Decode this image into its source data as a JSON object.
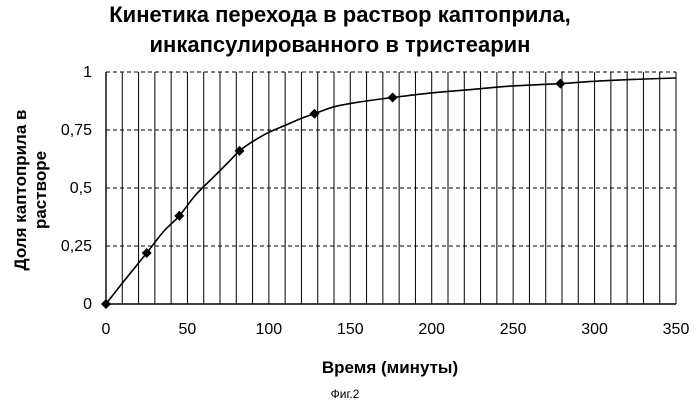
{
  "chart_data": {
    "type": "line",
    "title_lines": [
      "Кинетика перехода в раствор каптоприла,",
      "инкапсулированного в тристеарин"
    ],
    "xlabel": "Время (минуты)",
    "ylabel_lines": [
      "Доля каптоприла в",
      "растворе"
    ],
    "xlim": [
      0,
      350
    ],
    "ylim": [
      0,
      1
    ],
    "x_ticks": [
      0,
      50,
      100,
      150,
      200,
      250,
      300,
      350
    ],
    "y_ticks": [
      {
        "value": 0,
        "label": "0"
      },
      {
        "value": 0.25,
        "label": "0,25"
      },
      {
        "value": 0.5,
        "label": "0,5"
      },
      {
        "value": 0.75,
        "label": "0,75"
      },
      {
        "value": 1,
        "label": "1"
      }
    ],
    "vertical_grid_step": 10,
    "markers": [
      {
        "x": 0,
        "y": 0
      },
      {
        "x": 25,
        "y": 0.22
      },
      {
        "x": 45,
        "y": 0.38
      },
      {
        "x": 82,
        "y": 0.66
      },
      {
        "x": 128,
        "y": 0.82
      },
      {
        "x": 176,
        "y": 0.89
      },
      {
        "x": 279,
        "y": 0.95
      }
    ],
    "curve": [
      [
        0,
        0
      ],
      [
        10,
        0.09
      ],
      [
        25,
        0.22
      ],
      [
        35,
        0.31
      ],
      [
        45,
        0.38
      ],
      [
        55,
        0.47
      ],
      [
        65,
        0.54
      ],
      [
        75,
        0.61
      ],
      [
        82,
        0.66
      ],
      [
        90,
        0.7
      ],
      [
        100,
        0.74
      ],
      [
        110,
        0.77
      ],
      [
        120,
        0.8
      ],
      [
        128,
        0.82
      ],
      [
        140,
        0.85
      ],
      [
        155,
        0.87
      ],
      [
        176,
        0.89
      ],
      [
        200,
        0.91
      ],
      [
        225,
        0.925
      ],
      [
        250,
        0.94
      ],
      [
        279,
        0.95
      ],
      [
        300,
        0.96
      ],
      [
        320,
        0.967
      ],
      [
        340,
        0.972
      ],
      [
        350,
        0.974
      ]
    ]
  },
  "caption": "Фиг.2"
}
